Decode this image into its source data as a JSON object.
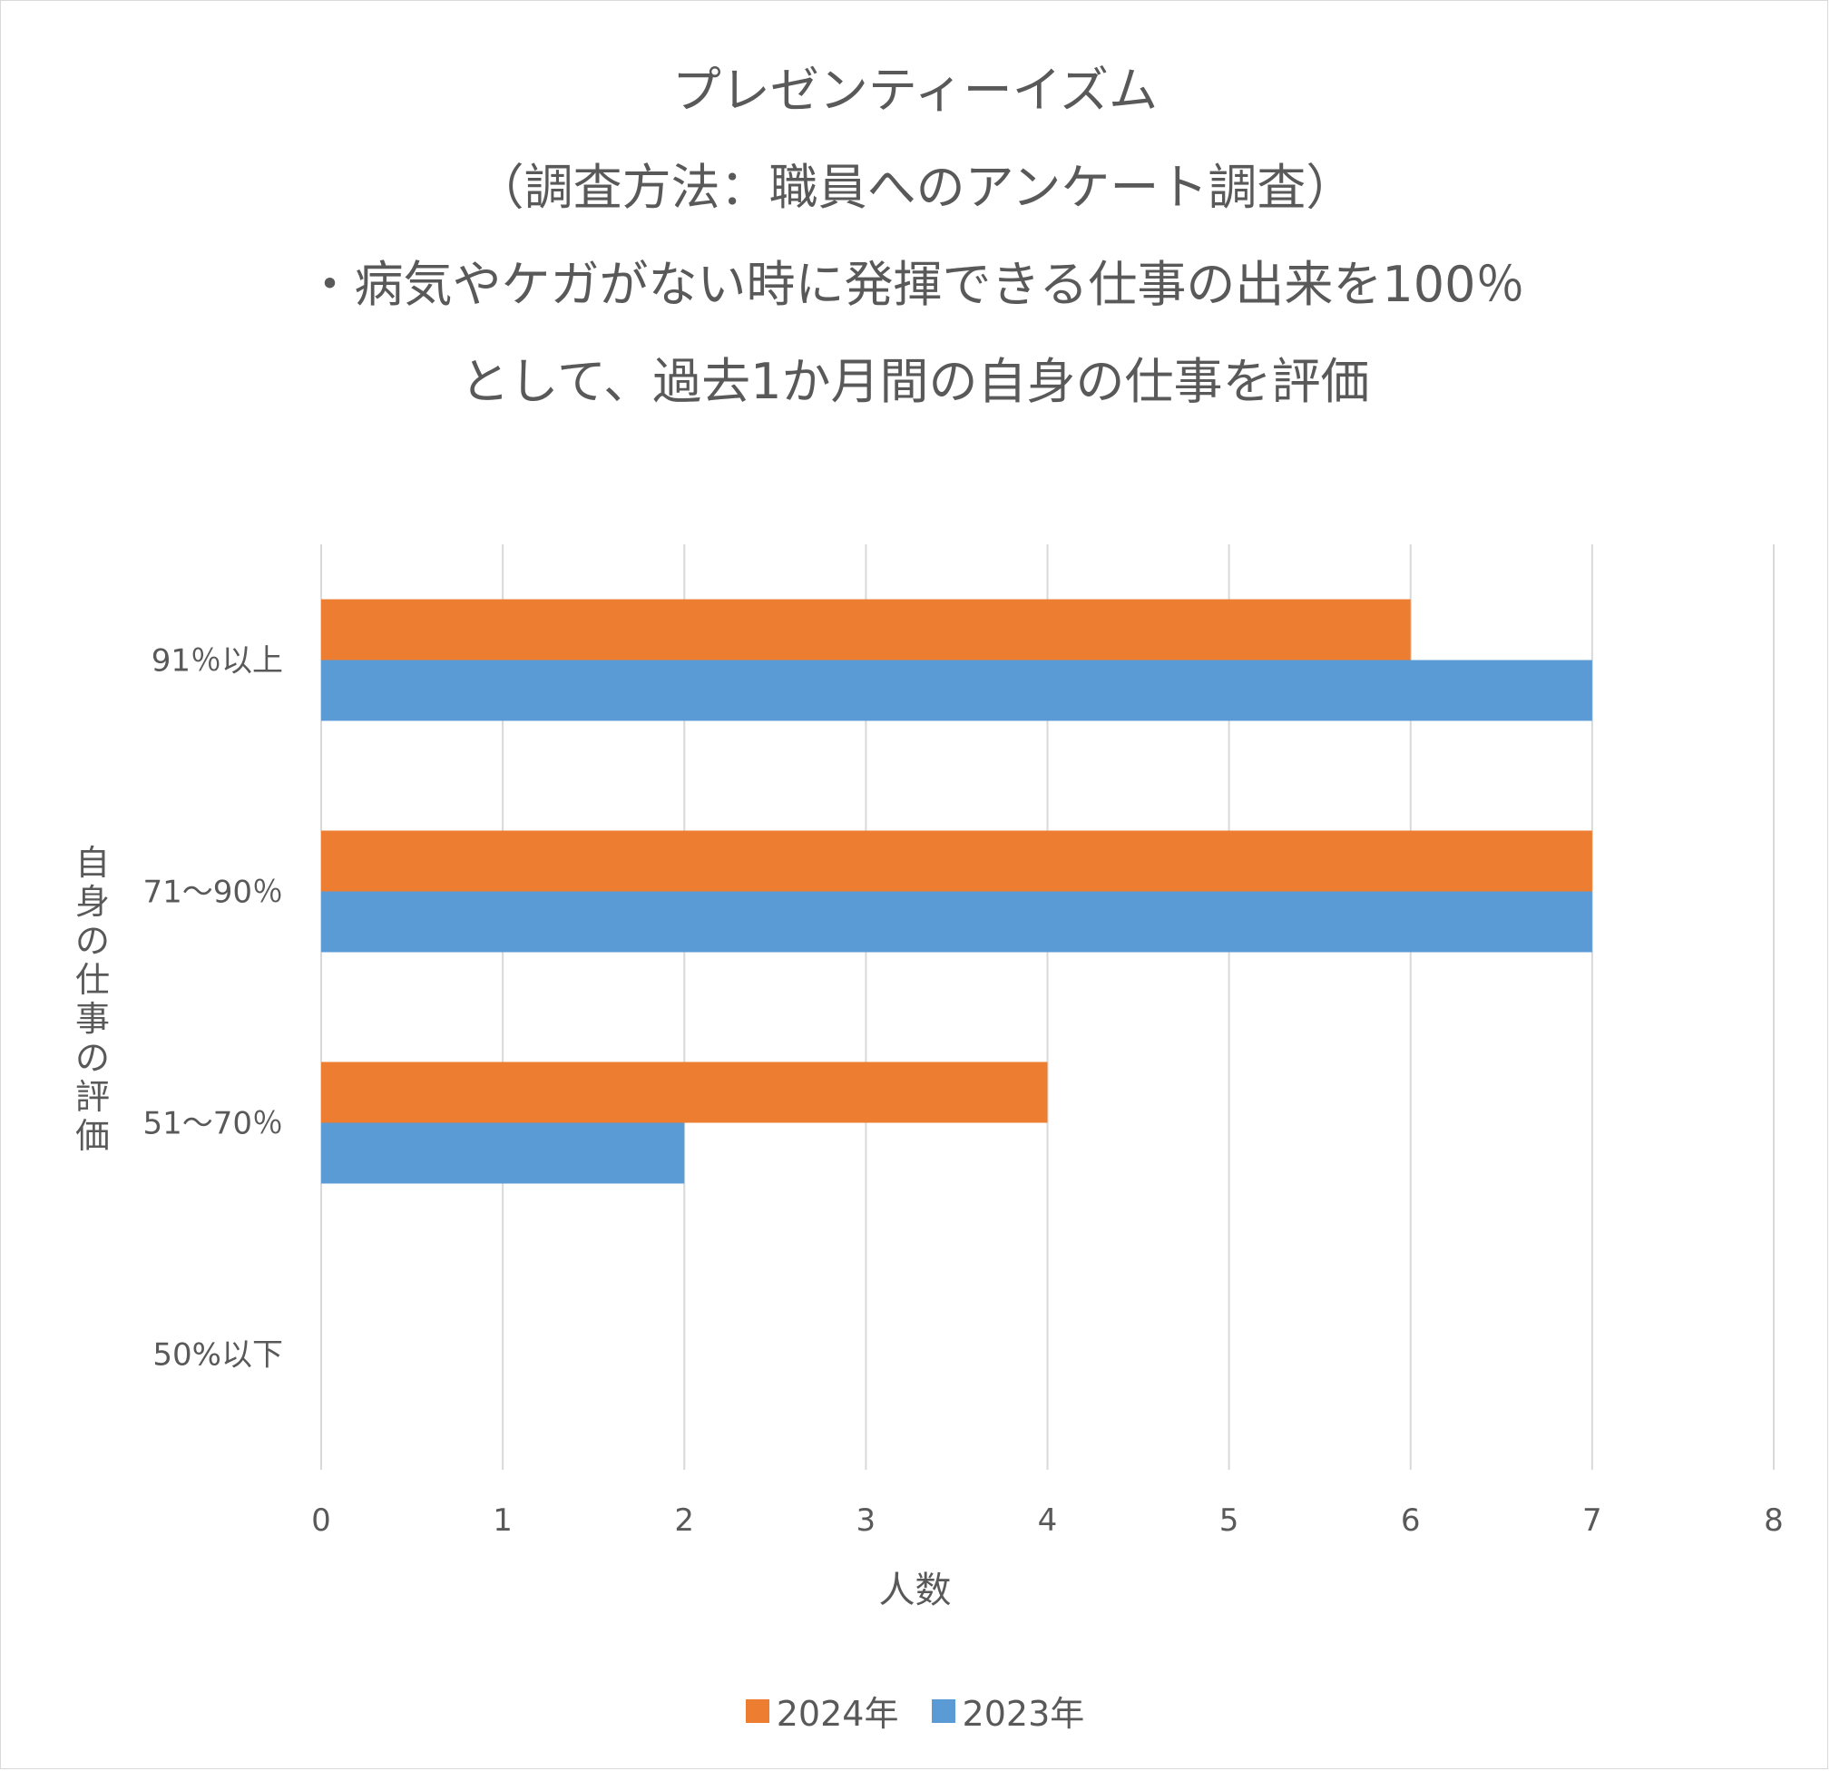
{
  "title_lines": [
    "プレゼンティーイズム",
    "（調査方法：職員へのアンケート調査）",
    "・病気やケガがない時に発揮できる仕事の出来を100％",
    "として、過去1か月間の自身の仕事を評価"
  ],
  "chart_data": {
    "type": "bar",
    "orientation": "horizontal",
    "title": "プレゼンティーイズム（調査方法：職員へのアンケート調査）・病気やケガがない時に発揮できる仕事の出来を100％として、過去1か月間の自身の仕事を評価",
    "categories": [
      "91％以上",
      "71～90％",
      "51～70％",
      "50%以下"
    ],
    "series": [
      {
        "name": "2024年",
        "color": "#ED7D31",
        "values": [
          6,
          7,
          4,
          0
        ]
      },
      {
        "name": "2023年",
        "color": "#5B9BD5",
        "values": [
          7,
          7,
          2,
          0
        ]
      }
    ],
    "xlabel": "人数",
    "ylabel": "自身の仕事の評価",
    "xlim": [
      0,
      8
    ],
    "xticks": [
      "0",
      "1",
      "2",
      "3",
      "4",
      "5",
      "6",
      "7",
      "8"
    ],
    "grid": true,
    "legend_position": "bottom"
  }
}
